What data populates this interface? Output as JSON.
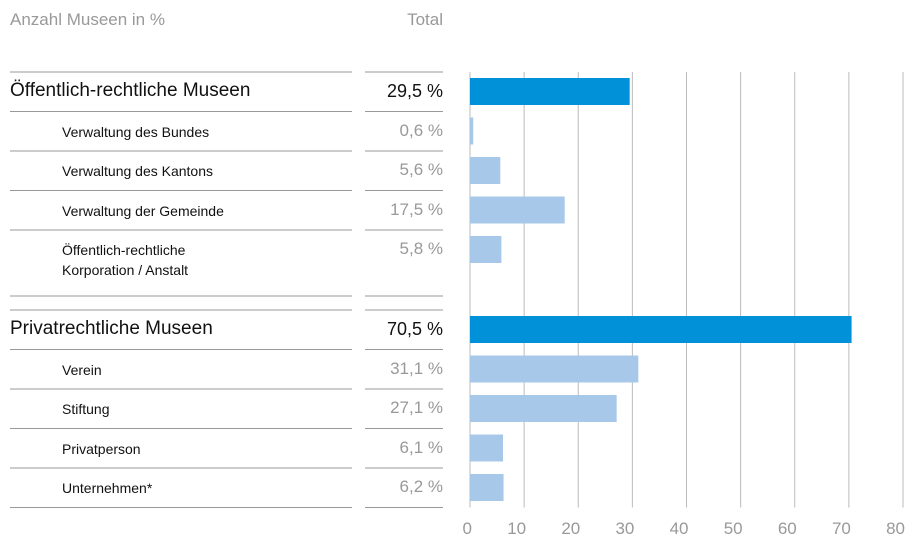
{
  "chart_data": {
    "type": "bar",
    "orientation": "horizontal",
    "title": "Anzahl Museen in %",
    "value_header": "Total",
    "categories": [
      "Öffentlich-rechtliche Museen",
      "Verwaltung des Bundes",
      "Verwaltung des Kantons",
      "Verwaltung der Gemeinde",
      "Öffentlich-rechtliche\nKorporation / Anstalt",
      "Privatrechtliche Museen",
      "Verein",
      "Stiftung",
      "Privatperson",
      "Unternehmen*"
    ],
    "values": [
      29.5,
      0.6,
      5.6,
      17.5,
      5.8,
      70.5,
      31.1,
      27.1,
      6.1,
      6.2
    ],
    "value_labels": [
      "29,5 %",
      "0,6 %",
      "5,6 %",
      "17,5 %",
      "5,8 %",
      "70,5 %",
      "31,1 %",
      "27,1 %",
      "6,1 %",
      "6,2 %"
    ],
    "group_color": "#0091d9",
    "colors": [
      "#0091d9",
      "#a8c8ea",
      "#a8c8ea",
      "#a8c8ea",
      "#a8c8ea",
      "#0091d9",
      "#a8c8ea",
      "#a8c8ea",
      "#a8c8ea",
      "#a8c8ea"
    ],
    "xlim": [
      0,
      80
    ],
    "xticks": [
      0,
      10,
      20,
      30,
      40,
      50,
      60,
      70,
      80
    ],
    "grid": true
  }
}
